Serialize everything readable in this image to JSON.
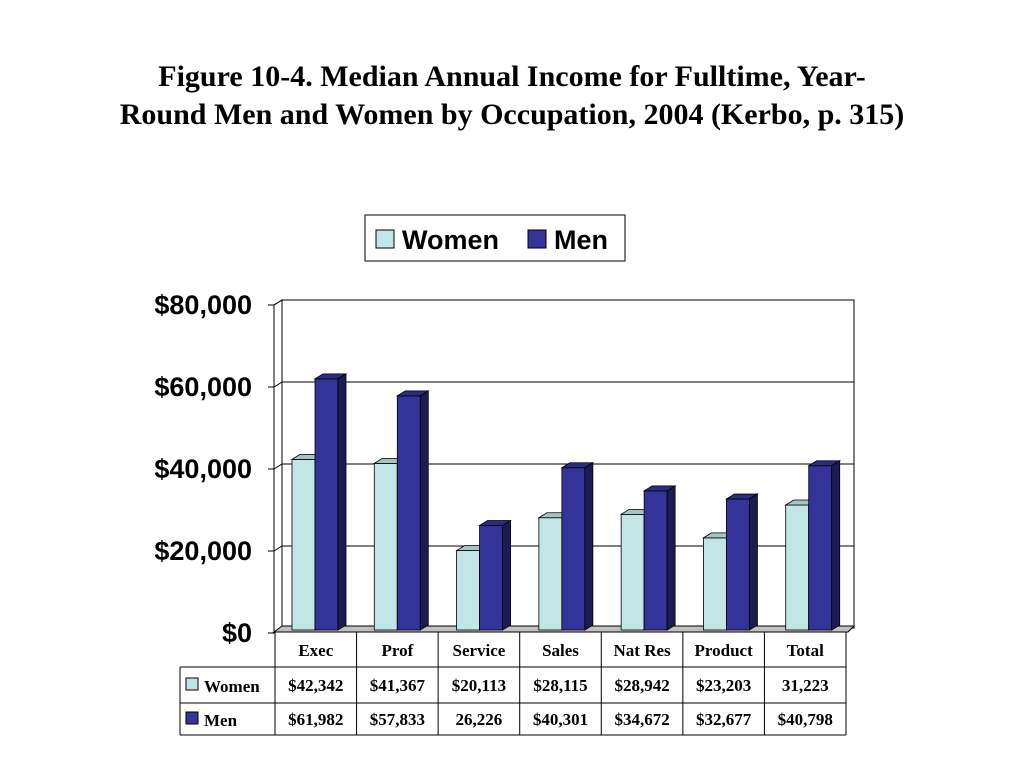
{
  "title": {
    "line1": "Figure 10-4. Median Annual Income for Fulltime, Year-",
    "line2": "Round Men and Women by Occupation, 2004 (Kerbo, p. 315)"
  },
  "colors": {
    "women": "#c2e6e6",
    "men": "#333399"
  },
  "chart_data": {
    "type": "bar",
    "categories": [
      "Exec",
      "Prof",
      "Service",
      "Sales",
      "Nat Res",
      "Product",
      "Total"
    ],
    "series": [
      {
        "name": "Women",
        "values": [
          42342,
          41367,
          20113,
          28115,
          28942,
          23203,
          31223
        ]
      },
      {
        "name": "Men",
        "values": [
          61982,
          57833,
          26226,
          40301,
          34672,
          32677,
          40798
        ]
      }
    ],
    "ylim": [
      0,
      80000
    ],
    "yticks": [
      "$0",
      "$20,000",
      "$40,000",
      "$60,000",
      "$80,000"
    ],
    "grid": true,
    "legend_position": "top",
    "data_table": {
      "rows": [
        {
          "label": "Women",
          "cells": [
            "$42,342",
            "$41,367",
            "$20,113",
            "$28,115",
            "$28,942",
            "$23,203",
            "31,223"
          ]
        },
        {
          "label": "Men",
          "cells": [
            "$61,982",
            "$57,833",
            "26,226",
            "$40,301",
            "$34,672",
            "$32,677",
            "$40,798"
          ]
        }
      ]
    }
  }
}
